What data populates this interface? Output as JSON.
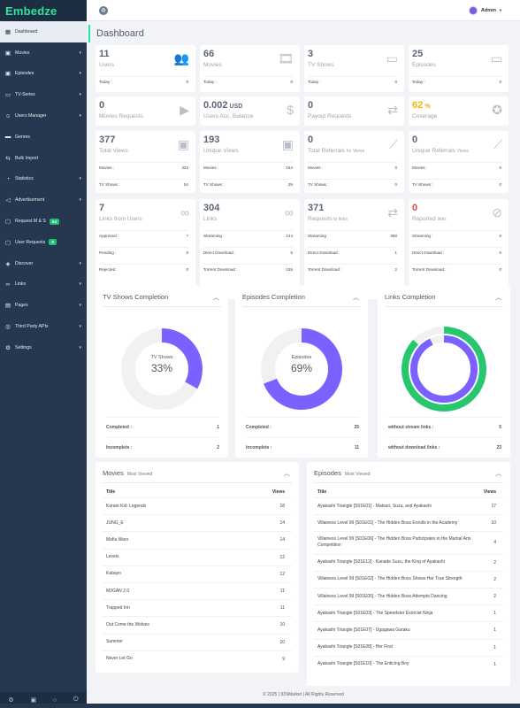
{
  "brand": "Embedze",
  "sidebar": {
    "items": [
      {
        "label": "Dashboard",
        "icon": "dashboard-icon",
        "glyph": "▦"
      },
      {
        "label": "Movies",
        "icon": "film-icon",
        "glyph": "▣",
        "chevron": true
      },
      {
        "label": "Episodes",
        "icon": "film-icon",
        "glyph": "▣",
        "chevron": true
      },
      {
        "label": "TV-Series",
        "icon": "tv-icon",
        "glyph": "▭",
        "chevron": true
      },
      {
        "label": "Users Manager",
        "icon": "users-icon",
        "glyph": "☺",
        "chevron": true
      },
      {
        "label": "Genres",
        "icon": "folder-icon",
        "glyph": "▬"
      },
      {
        "label": "Bulk Import",
        "icon": "import-icon",
        "glyph": "⇆"
      },
      {
        "label": "Statistics",
        "icon": "statistics-icon",
        "glyph": "◔",
        "chevron": true
      },
      {
        "label": "Advertisement",
        "icon": "megaphone-icon",
        "glyph": "◁",
        "chevron": true
      },
      {
        "label": "Request M & S",
        "icon": "request-icon",
        "glyph": "▢",
        "badge": "54"
      },
      {
        "label": "User Requests",
        "icon": "request-icon",
        "glyph": "▢",
        "badge": "0"
      },
      {
        "label": "Discover",
        "icon": "discover-icon",
        "glyph": "◈",
        "chevron": true
      },
      {
        "label": "Links",
        "icon": "link-icon",
        "glyph": "∞",
        "chevron": true
      },
      {
        "label": "Pages",
        "icon": "pages-icon",
        "glyph": "▤",
        "chevron": true
      },
      {
        "label": "Third Party APIs",
        "icon": "api-icon",
        "glyph": "◎",
        "chevron": true
      },
      {
        "label": "Settings",
        "icon": "gear-icon",
        "glyph": "⚙",
        "chevron": true
      }
    ],
    "footer_icons": [
      "gear-icon",
      "film-icon",
      "circle-icon",
      "power-icon"
    ]
  },
  "topbar": {
    "user": "Admin"
  },
  "page_title": "Dashboard",
  "stats": {
    "row1": [
      {
        "value": "11",
        "label": "Users",
        "icon": "users-icon",
        "rows": [
          [
            "Today :",
            "0"
          ]
        ]
      },
      {
        "value": "66",
        "label": "Movies",
        "icon": "film-icon",
        "rows": [
          [
            "Today :",
            "0"
          ]
        ]
      },
      {
        "value": "3",
        "label": "TV Shows",
        "icon": "tv-icon",
        "rows": [
          [
            "Today :",
            "0"
          ]
        ]
      },
      {
        "value": "25",
        "label": "Episodes",
        "icon": "tv-icon",
        "rows": [
          [
            "Today :",
            "0"
          ]
        ]
      }
    ],
    "row2": [
      {
        "value": "0",
        "label": "Movies Requests",
        "icon": "video-request-icon"
      },
      {
        "value": "0.002",
        "unit": "USD",
        "label": "Users Acc. Balance",
        "icon": "wallet-icon"
      },
      {
        "value": "0",
        "label": "Payout Requests",
        "icon": "payout-icon"
      },
      {
        "value": "62",
        "unit": "%",
        "label": "Coverage",
        "icon": "medal-icon",
        "color": "yellow"
      }
    ],
    "row3": [
      {
        "value": "377",
        "label": "Total Views",
        "icon": "monitor-user-icon",
        "rows": [
          [
            "Movies :",
            "323"
          ],
          [
            "TV Shows :",
            "54"
          ]
        ]
      },
      {
        "value": "193",
        "label": "Unique Views",
        "icon": "monitor-user-icon",
        "rows": [
          [
            "Movies :",
            "164"
          ],
          [
            "TV Shows :",
            "29"
          ]
        ]
      },
      {
        "value": "0",
        "label": "Total Referrals",
        "sub": "for Views",
        "icon": "chart-line-icon",
        "rows": [
          [
            "Movies :",
            "0"
          ],
          [
            "TV Shows :",
            "0"
          ]
        ]
      },
      {
        "value": "0",
        "label": "Unique Referrals",
        "sub": "Views",
        "icon": "chart-line-icon",
        "rows": [
          [
            "Movies :",
            "0"
          ],
          [
            "TV Shows :",
            "0"
          ]
        ]
      }
    ],
    "row4": [
      {
        "value": "7",
        "label": "Links from Users",
        "icon": "link-icon",
        "rows": [
          [
            "Approved :",
            "7"
          ],
          [
            "Pending :",
            "0"
          ],
          [
            "Rejected :",
            "0"
          ]
        ]
      },
      {
        "value": "304",
        "label": "Links",
        "icon": "link-icon",
        "rows": [
          [
            "Streaming :",
            "144"
          ],
          [
            "Direct Download :",
            "5"
          ],
          [
            "Torrent Download :",
            "155"
          ]
        ]
      },
      {
        "value": "371",
        "label": "Requests",
        "sub": "to links",
        "icon": "swap-icon",
        "rows": [
          [
            "Streaming :",
            "368"
          ],
          [
            "Direct Download :",
            "1"
          ],
          [
            "Torrent Download :",
            "2"
          ]
        ]
      },
      {
        "value": "0",
        "label": "Reported",
        "sub": "links",
        "icon": "broken-link-icon",
        "color": "red",
        "rows": [
          [
            "Streaming :",
            "0"
          ],
          [
            "Direct Download :",
            "0"
          ],
          [
            "Torrent Download :",
            "0"
          ]
        ]
      }
    ]
  },
  "completion": [
    {
      "title": "TV Shows Completion",
      "center_label": "TV Shows",
      "center_value": "33%",
      "fraction": 0.33,
      "legend": [
        [
          "Completed :",
          "1"
        ],
        [
          "Incomplete :",
          "2"
        ]
      ]
    },
    {
      "title": "Episodes Completion",
      "center_label": "Episodes",
      "center_value": "69%",
      "fraction": 0.69,
      "legend": [
        [
          "Completed :",
          "25"
        ],
        [
          "Incomplete :",
          "11"
        ]
      ]
    },
    {
      "title": "Links Completion",
      "outer_fraction": 0.87,
      "inner_fraction": 0.93,
      "legend": [
        [
          "without stream links :",
          "5"
        ],
        [
          "without download links :",
          "23"
        ]
      ]
    }
  ],
  "colors": {
    "accent": "#2ee59d",
    "purple": "#7b61ff",
    "green": "#28c76f",
    "track": "#f1f1f1",
    "sidebar": "#26384f"
  },
  "movies_table": {
    "title": "Movies",
    "subtitle": "Most Viewed",
    "headers": [
      "Title",
      "Views"
    ],
    "rows": [
      [
        "Karate Kid: Legends",
        "18"
      ],
      [
        "JUNG_E",
        "14"
      ],
      [
        "Mafia Wars",
        "14"
      ],
      [
        "Levels",
        "12"
      ],
      [
        "Kabayo",
        "12"
      ],
      [
        "M3GAN 2.0",
        "11"
      ],
      [
        "Trapped Inn",
        "11"
      ],
      [
        "Out Come the Wolves",
        "10"
      ],
      [
        "Summer",
        "10"
      ],
      [
        "Never Let Go",
        "9"
      ]
    ]
  },
  "episodes_table": {
    "title": "Episodes",
    "subtitle": "Most Viewed",
    "headers": [
      "Title",
      "Views"
    ],
    "rows": [
      [
        "Ayakashi Triangle [S01E01] - Matsuri, Suzu, and Ayakashi",
        "17"
      ],
      [
        "Villainess Level 99 [S01E01] - The Hidden Boss Enrolls in the Academy",
        "10"
      ],
      [
        "Villainess Level 99 [S01E06] - The Hidden Boss Participates in the Martial Arts Competition",
        "4"
      ],
      [
        "Ayakashi Triangle [S01E12] - Kanade Suzu, the King of Ayakashi",
        "2"
      ],
      [
        "Villainess Level 99 [S01E02] - The Hidden Boss Shows Her True Strength",
        "2"
      ],
      [
        "Villainess Level 99 [S01E05] - The Hidden Boss Attempts Dancing",
        "2"
      ],
      [
        "Ayakashi Triangle [S01E03] - The Speedster Exorcist Ninja",
        "1"
      ],
      [
        "Ayakashi Triangle [S01E07] - Ugagawa Garaku",
        "1"
      ],
      [
        "Ayakashi Triangle [S01E08] - Her First",
        "1"
      ],
      [
        "Ayakashi Triangle [S01E10] - The Enticing Boy",
        "1"
      ]
    ]
  },
  "footer": "© 2025 | IDNMarket | All Rights Reserved"
}
